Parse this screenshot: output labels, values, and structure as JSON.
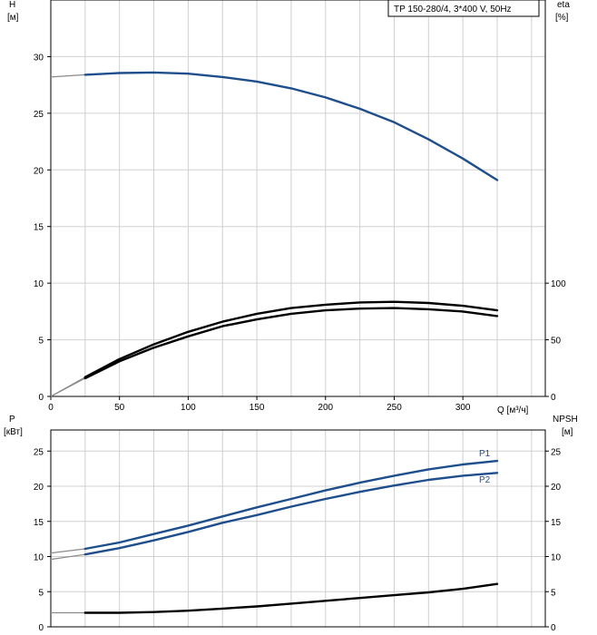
{
  "colors": {
    "blue": "#1f4e8c",
    "black": "#000000",
    "grid": "#d0d0d0",
    "extension": "#8a8a8a"
  },
  "chart_data": [
    {
      "type": "line",
      "legend_text": "TP 150-280/4, 3*400 V, 50Hz",
      "legend_placement": "top-right",
      "grid": true,
      "xlabel": "Q [м³/ч]",
      "xlim": [
        0,
        360
      ],
      "xticks": [
        "0",
        "50",
        "100",
        "150",
        "200",
        "250",
        "300"
      ],
      "y_left": {
        "label_top": "H",
        "label_unit": "[м]",
        "ylim": [
          0,
          35
        ],
        "ticks": [
          "0",
          "5",
          "10",
          "15",
          "20",
          "25",
          "30"
        ]
      },
      "y_right": {
        "label_top": "eta",
        "label_unit": "[%]",
        "ylim": [
          0,
          350
        ],
        "ticks": [
          "0",
          "50",
          "100"
        ]
      },
      "series": [
        {
          "id": "H",
          "axis": "left",
          "color": "#1f4e8c",
          "x": [
            0,
            25,
            50,
            75,
            100,
            125,
            150,
            175,
            200,
            225,
            250,
            275,
            300,
            325
          ],
          "y": [
            28.2,
            28.4,
            28.55,
            28.6,
            28.5,
            28.2,
            27.8,
            27.2,
            26.4,
            25.4,
            24.2,
            22.7,
            21.0,
            19.1
          ],
          "extension_to_x": 25
        },
        {
          "id": "eta1",
          "axis": "right",
          "color": "#000000",
          "x": [
            0,
            25,
            50,
            75,
            100,
            125,
            150,
            175,
            200,
            225,
            250,
            275,
            300,
            325
          ],
          "y": [
            0,
            17,
            33,
            46,
            57,
            66,
            73,
            78,
            81,
            83,
            83.5,
            82.5,
            80,
            76
          ],
          "extension_to_x": 25
        },
        {
          "id": "eta2",
          "axis": "right",
          "color": "#000000",
          "x": [
            0,
            25,
            50,
            75,
            100,
            125,
            150,
            175,
            200,
            225,
            250,
            275,
            300,
            325
          ],
          "y": [
            0,
            16,
            31,
            43,
            53,
            62,
            68,
            73,
            76,
            77.5,
            78,
            77,
            75,
            71
          ],
          "extension_to_x": 25
        }
      ]
    },
    {
      "type": "line",
      "grid": true,
      "xlim": [
        0,
        360
      ],
      "y_left": {
        "label_top": "P",
        "label_unit": "[кВт]",
        "ylim": [
          0,
          28
        ],
        "ticks": [
          "0",
          "5",
          "10",
          "15",
          "20",
          "25"
        ]
      },
      "y_right": {
        "label_top": "NPSH",
        "label_unit": "[м]",
        "ylim": [
          0,
          28
        ],
        "ticks": [
          "0",
          "5",
          "10",
          "15",
          "20",
          "25"
        ]
      },
      "series": [
        {
          "id": "P1",
          "name": "P1",
          "axis": "left",
          "color": "#1f4e8c",
          "x": [
            0,
            25,
            50,
            75,
            100,
            125,
            150,
            175,
            200,
            225,
            250,
            275,
            300,
            325
          ],
          "y": [
            10.5,
            11.1,
            12.0,
            13.2,
            14.4,
            15.7,
            17.0,
            18.2,
            19.4,
            20.5,
            21.5,
            22.4,
            23.1,
            23.6
          ],
          "extension_to_x": 25
        },
        {
          "id": "P2",
          "name": "P2",
          "axis": "left",
          "color": "#1f4e8c",
          "x": [
            0,
            25,
            50,
            75,
            100,
            125,
            150,
            175,
            200,
            225,
            250,
            275,
            300,
            325
          ],
          "y": [
            9.6,
            10.3,
            11.2,
            12.3,
            13.5,
            14.8,
            15.9,
            17.1,
            18.2,
            19.2,
            20.1,
            20.9,
            21.5,
            21.9
          ],
          "extension_to_x": 25
        },
        {
          "id": "NPSH",
          "axis": "right",
          "color": "#000000",
          "x": [
            0,
            25,
            50,
            75,
            100,
            125,
            150,
            175,
            200,
            225,
            250,
            275,
            300,
            325
          ],
          "y": [
            2.0,
            2.0,
            2.0,
            2.1,
            2.3,
            2.6,
            2.9,
            3.3,
            3.7,
            4.1,
            4.5,
            4.9,
            5.4,
            6.1
          ],
          "extension_to_x": 25
        }
      ]
    }
  ]
}
